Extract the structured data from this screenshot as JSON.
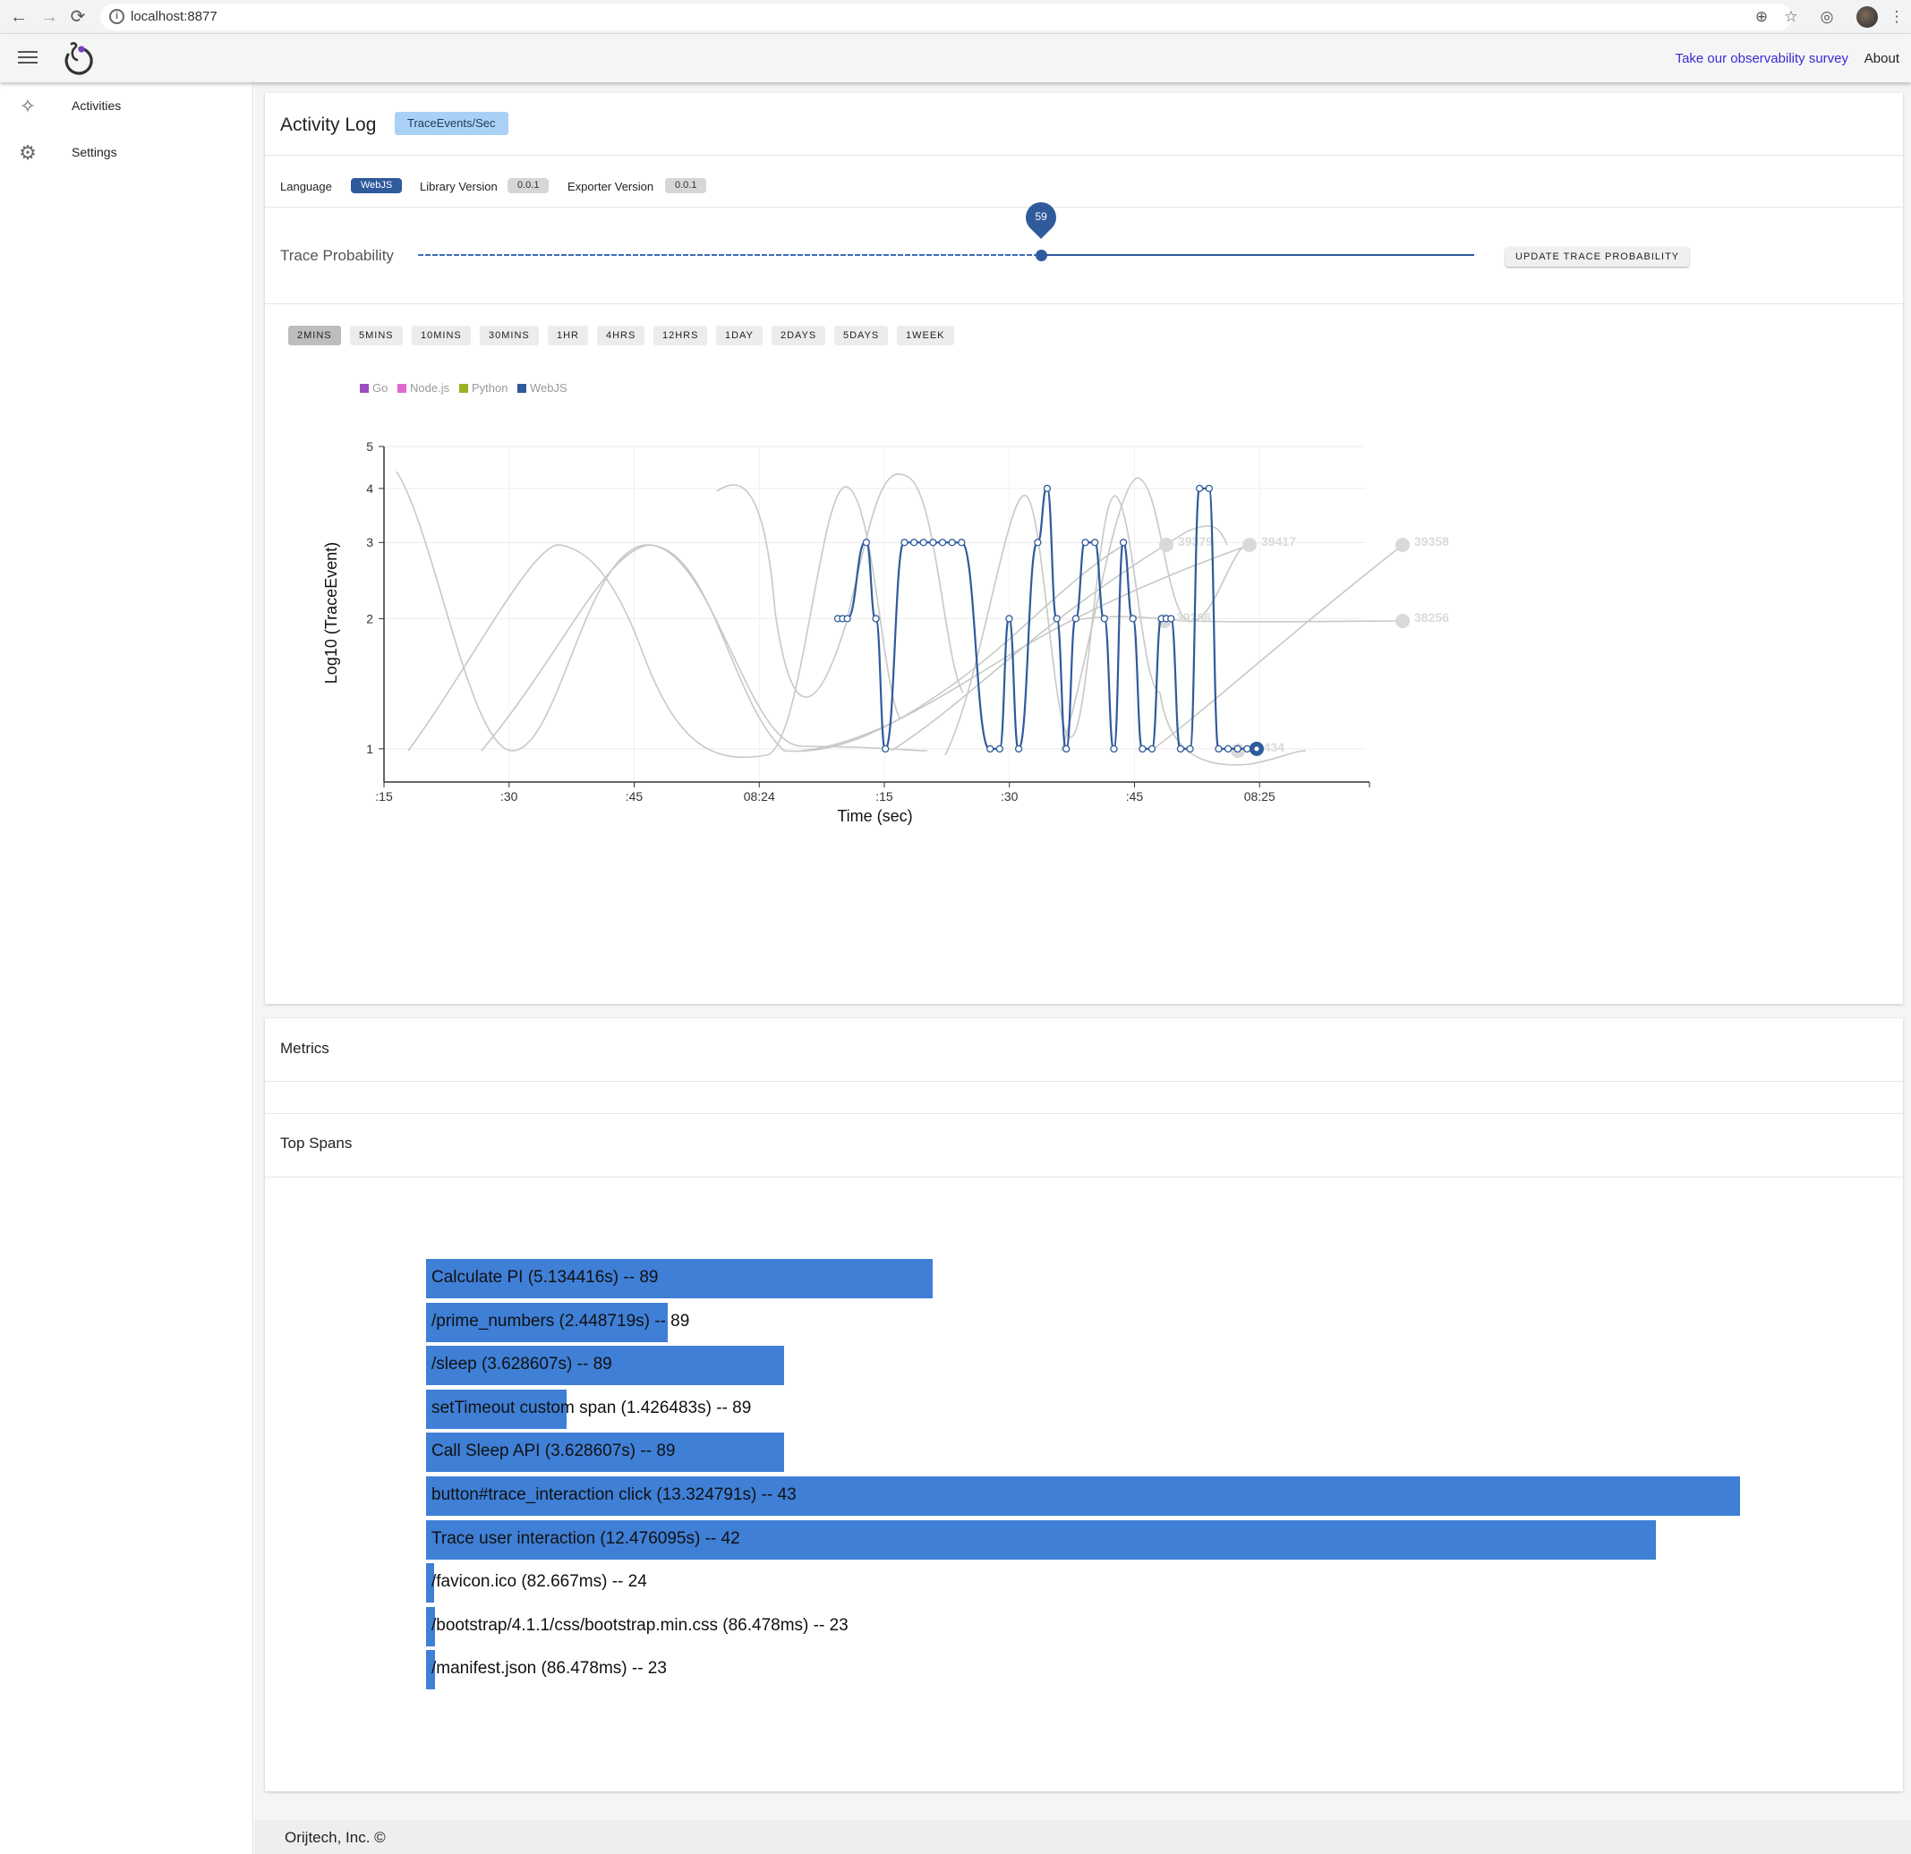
{
  "browser": {
    "url": "localhost:8877"
  },
  "header": {
    "survey_link": "Take our observability survey",
    "about_link": "About"
  },
  "sidebar": {
    "items": [
      {
        "label": "Activities",
        "icon": "activity-icon"
      },
      {
        "label": "Settings",
        "icon": "gear-icon"
      }
    ]
  },
  "activity": {
    "title": "Activity Log",
    "rate_chip": "TraceEvents/Sec",
    "language_label": "Language",
    "language_value": "WebJS",
    "library_label": "Library Version",
    "library_value": "0.0.1",
    "exporter_label": "Exporter Version",
    "exporter_value": "0.0.1",
    "probability_label": "Trace Probability",
    "probability_value": "59",
    "probability_fraction": 0.59,
    "update_button": "UPDATE TRACE PROBABILITY",
    "ranges": [
      "2MINS",
      "5MINS",
      "10MINS",
      "30MINS",
      "1HR",
      "4HRS",
      "12HRS",
      "1DAY",
      "2DAYS",
      "5DAYS",
      "1WEEK"
    ],
    "active_range": "2MINS"
  },
  "chart_data": {
    "type": "line",
    "title": "",
    "xlabel": "Time (sec)",
    "ylabel": "Log10 (TraceEvent)",
    "x_ticks": [
      ":15",
      ":30",
      ":45",
      "08:24",
      ":15",
      ":30",
      ":45",
      "08:25"
    ],
    "y_ticks": [
      "1",
      "2",
      "3",
      "4",
      "5"
    ],
    "ylim": [
      0.85,
      5
    ],
    "scale": "log",
    "grid": true,
    "legend_position": "top-left",
    "series": [
      {
        "name": "Go",
        "color": "#9b4fc1"
      },
      {
        "name": "Node.js",
        "color": "#e06ad0"
      },
      {
        "name": "Python",
        "color": "#9ab321"
      },
      {
        "name": "WebJS",
        "color": "#2f5a9c"
      }
    ],
    "webjs_points": [
      [
        ":48",
        2
      ],
      [
        ":48.5",
        2
      ],
      [
        ":49",
        2
      ],
      [
        ":51",
        3
      ],
      [
        ":52",
        2
      ],
      [
        ":53",
        1
      ],
      [
        ":55",
        3
      ],
      [
        ":56",
        3
      ],
      [
        ":57",
        3
      ],
      [
        ":58",
        3
      ],
      [
        ":59",
        3
      ],
      [
        ":60",
        3
      ],
      [
        ":61",
        3
      ],
      [
        ":64",
        1
      ],
      [
        ":65",
        1
      ],
      [
        ":66",
        2
      ],
      [
        ":67",
        1
      ],
      [
        ":69",
        3
      ],
      [
        ":70",
        4
      ],
      [
        ":71",
        2
      ],
      [
        ":72",
        1
      ],
      [
        ":73",
        2
      ],
      [
        ":74",
        3
      ],
      [
        ":75",
        3
      ],
      [
        ":76",
        2
      ],
      [
        ":77",
        1
      ],
      [
        ":78",
        3
      ],
      [
        ":79",
        2
      ],
      [
        ":80",
        1
      ],
      [
        ":81",
        1
      ],
      [
        ":82",
        2
      ],
      [
        ":82.5",
        2
      ],
      [
        ":83",
        2
      ],
      [
        ":84",
        1
      ],
      [
        ":85",
        1
      ],
      [
        ":86",
        4
      ],
      [
        ":87",
        4
      ],
      [
        ":88",
        1
      ],
      [
        ":89",
        1
      ],
      [
        ":90",
        1
      ],
      [
        ":91",
        1
      ],
      [
        ":92",
        1
      ]
    ],
    "faded_labels": [
      {
        "text": "39379",
        "y": 3
      },
      {
        "text": "39417",
        "y": 3
      },
      {
        "text": "39358",
        "y": 3
      },
      {
        "text": "39296",
        "y": 2
      },
      {
        "text": "38256",
        "y": 2
      },
      {
        "text": "39434",
        "y": 1
      }
    ]
  },
  "metrics": {
    "title": "Metrics",
    "top_spans_title": "Top Spans",
    "spans": [
      {
        "label": "Calculate PI (5.134416s) -- 89",
        "seconds": 5.134416
      },
      {
        "label": "/prime_numbers (2.448719s) -- 89",
        "seconds": 2.448719
      },
      {
        "label": "/sleep (3.628607s) -- 89",
        "seconds": 3.628607
      },
      {
        "label": "setTimeout custom span (1.426483s) -- 89",
        "seconds": 1.426483
      },
      {
        "label": "Call Sleep API (3.628607s) -- 89",
        "seconds": 3.628607
      },
      {
        "label": "button#trace_interaction click (13.324791s) -- 43",
        "seconds": 13.324791
      },
      {
        "label": "Trace user interaction (12.476095s) -- 42",
        "seconds": 12.476095
      },
      {
        "label": "/favicon.ico (82.667ms) -- 24",
        "seconds": 0.082667
      },
      {
        "label": "/bootstrap/4.1.1/css/bootstrap.min.css (86.478ms) -- 23",
        "seconds": 0.086478
      },
      {
        "label": "/manifest.json (86.478ms) -- 23",
        "seconds": 0.086478
      }
    ]
  },
  "footer": {
    "text": "Orijtech, Inc. ©"
  }
}
